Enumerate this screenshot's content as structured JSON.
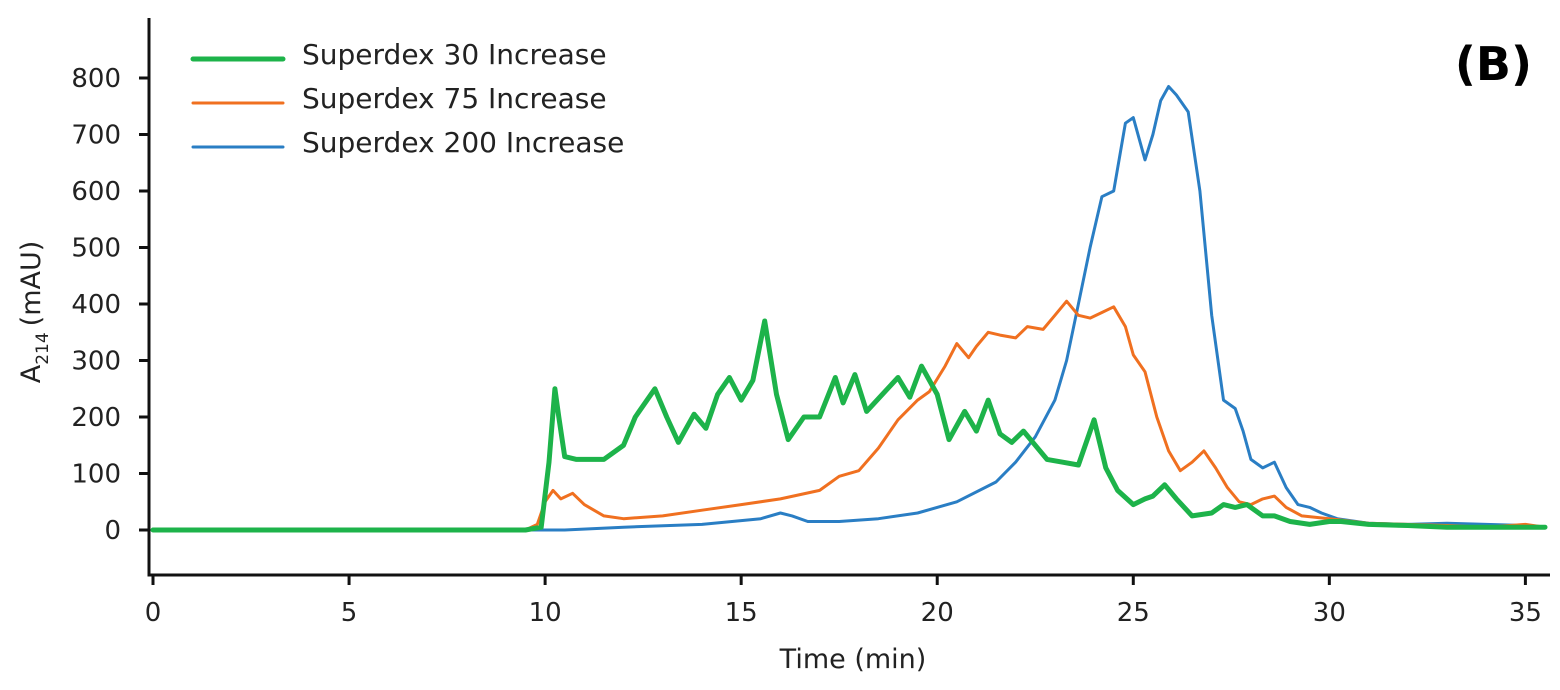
{
  "chart_data": {
    "type": "line",
    "panel_label": "(B)",
    "xlabel": "Time (min)",
    "ylabel_main": "A",
    "ylabel_sub": "214",
    "ylabel_unit": "(mAU)",
    "xlim": [
      0,
      35.5
    ],
    "ylim": [
      -80,
      900
    ],
    "x_ticks": [
      0,
      5,
      10,
      15,
      20,
      25,
      30,
      35
    ],
    "x_tick_labels": [
      "0",
      "5",
      "10",
      "15",
      "20",
      "25",
      "30",
      "35"
    ],
    "y_ticks": [
      0,
      100,
      200,
      300,
      400,
      500,
      600,
      700,
      800
    ],
    "y_tick_labels": [
      "0",
      "100",
      "200",
      "300",
      "400",
      "500",
      "600",
      "700",
      "800"
    ],
    "legend_position": "top-left",
    "series": [
      {
        "name": "Superdex 30 Increase",
        "color": "#1db34a",
        "width": 5,
        "x": [
          0,
          9.5,
          9.9,
          10.1,
          10.25,
          10.35,
          10.5,
          10.8,
          11.5,
          12.0,
          12.3,
          12.8,
          13.1,
          13.4,
          13.8,
          14.1,
          14.4,
          14.7,
          15.0,
          15.3,
          15.6,
          15.9,
          16.2,
          16.6,
          17.0,
          17.4,
          17.6,
          17.9,
          18.2,
          18.6,
          19.0,
          19.3,
          19.6,
          20.0,
          20.3,
          20.7,
          21.0,
          21.3,
          21.6,
          21.9,
          22.2,
          22.5,
          22.8,
          23.2,
          23.6,
          24.0,
          24.3,
          24.6,
          25.0,
          25.3,
          25.5,
          25.8,
          26.1,
          26.5,
          27.0,
          27.3,
          27.6,
          27.9,
          28.3,
          28.6,
          29.0,
          29.5,
          30.0,
          30.3,
          31.0,
          32.0,
          33.0,
          34.0,
          35.5
        ],
        "y": [
          0,
          0,
          5,
          120,
          250,
          200,
          130,
          125,
          125,
          150,
          200,
          250,
          200,
          155,
          205,
          180,
          240,
          270,
          230,
          265,
          370,
          240,
          160,
          200,
          200,
          270,
          225,
          275,
          210,
          240,
          270,
          235,
          290,
          240,
          160,
          210,
          175,
          230,
          170,
          155,
          175,
          150,
          125,
          120,
          115,
          195,
          110,
          70,
          45,
          55,
          60,
          80,
          55,
          25,
          30,
          45,
          40,
          45,
          25,
          25,
          15,
          10,
          15,
          15,
          10,
          8,
          5,
          5,
          5
        ]
      },
      {
        "name": "Superdex 75 Increase",
        "color": "#f07020",
        "width": 3,
        "x": [
          0,
          9.5,
          9.8,
          10.0,
          10.2,
          10.4,
          10.7,
          11.0,
          11.5,
          12.0,
          13.0,
          14.0,
          15.0,
          16.0,
          17.0,
          17.5,
          18.0,
          18.5,
          19.0,
          19.5,
          19.8,
          20.2,
          20.5,
          20.8,
          21.0,
          21.3,
          21.6,
          22.0,
          22.3,
          22.7,
          23.0,
          23.3,
          23.6,
          23.9,
          24.2,
          24.5,
          24.8,
          25.0,
          25.3,
          25.6,
          25.9,
          26.2,
          26.5,
          26.8,
          27.1,
          27.4,
          27.7,
          28.0,
          28.3,
          28.6,
          28.9,
          29.3,
          30.0,
          31.0,
          32.0,
          33.0,
          34.0,
          35.0,
          35.5
        ],
        "y": [
          0,
          0,
          10,
          50,
          70,
          55,
          65,
          45,
          25,
          20,
          25,
          35,
          45,
          55,
          70,
          95,
          105,
          145,
          195,
          230,
          245,
          290,
          330,
          305,
          325,
          350,
          345,
          340,
          360,
          355,
          380,
          405,
          380,
          375,
          385,
          395,
          360,
          310,
          280,
          200,
          140,
          105,
          120,
          140,
          110,
          75,
          50,
          45,
          55,
          60,
          40,
          25,
          20,
          12,
          10,
          8,
          5,
          10,
          5
        ]
      },
      {
        "name": "Superdex 200 Increase",
        "color": "#2a7ec4",
        "width": 3,
        "x": [
          0,
          10.5,
          12.0,
          14.0,
          15.5,
          16.0,
          16.3,
          16.7,
          17.5,
          18.5,
          19.5,
          20.5,
          21.5,
          22.0,
          22.5,
          23.0,
          23.3,
          23.6,
          23.9,
          24.2,
          24.5,
          24.8,
          25.0,
          25.3,
          25.5,
          25.7,
          25.9,
          26.1,
          26.4,
          26.7,
          27.0,
          27.3,
          27.6,
          27.8,
          28.0,
          28.3,
          28.6,
          28.9,
          29.2,
          29.5,
          29.8,
          30.2,
          31.0,
          32.0,
          33.0,
          34.0,
          35.0,
          35.5
        ],
        "y": [
          0,
          0,
          5,
          10,
          20,
          30,
          25,
          15,
          15,
          20,
          30,
          50,
          85,
          120,
          165,
          230,
          300,
          400,
          500,
          590,
          600,
          720,
          730,
          655,
          700,
          760,
          785,
          770,
          740,
          600,
          380,
          230,
          215,
          175,
          125,
          110,
          120,
          75,
          45,
          40,
          30,
          20,
          12,
          10,
          12,
          10,
          8,
          5
        ]
      }
    ]
  }
}
